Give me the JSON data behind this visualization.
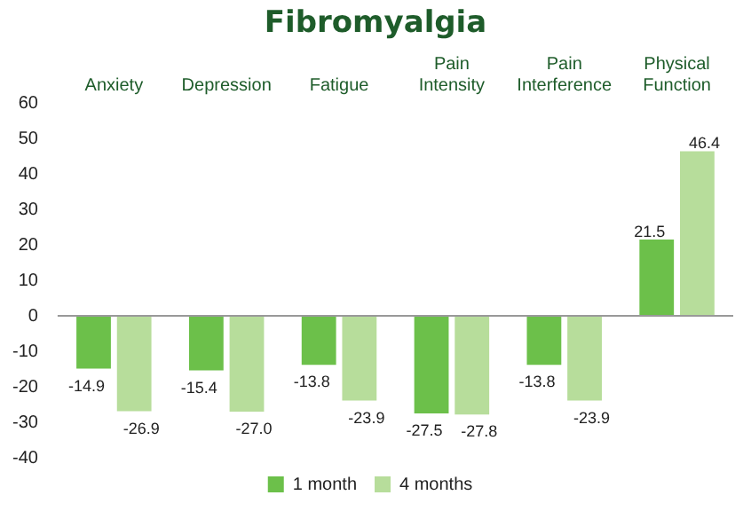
{
  "chart_data": {
    "type": "bar",
    "title": "Fibromyalgia",
    "categories": [
      "Anxiety",
      "Depression",
      "Fatigue",
      "Pain Intensity",
      "Pain Interference",
      "Physical Function"
    ],
    "series": [
      {
        "name": "1 month",
        "color": "#6cc04a",
        "values": [
          -14.9,
          -15.4,
          -13.8,
          -27.5,
          -13.8,
          21.5
        ],
        "value_labels": [
          "-14.9",
          "-15.4",
          "-13.8",
          "-27.5",
          "-13.8",
          "21.5"
        ]
      },
      {
        "name": "4 months",
        "color": "#b7dd9b",
        "values": [
          -26.9,
          -27.0,
          -23.9,
          -27.8,
          -23.9,
          46.4
        ],
        "value_labels": [
          "-26.9",
          "-27.0",
          "-23.9",
          "-27.8",
          "-23.9",
          "46.4"
        ]
      }
    ],
    "ylim": [
      -40,
      60
    ],
    "yticks": [
      60,
      50,
      40,
      30,
      20,
      10,
      0,
      -10,
      -20,
      -30,
      -40
    ],
    "ref_lines": [
      {
        "axis": "y",
        "value": 0,
        "color": "#999999"
      }
    ],
    "legend": "bottom"
  }
}
